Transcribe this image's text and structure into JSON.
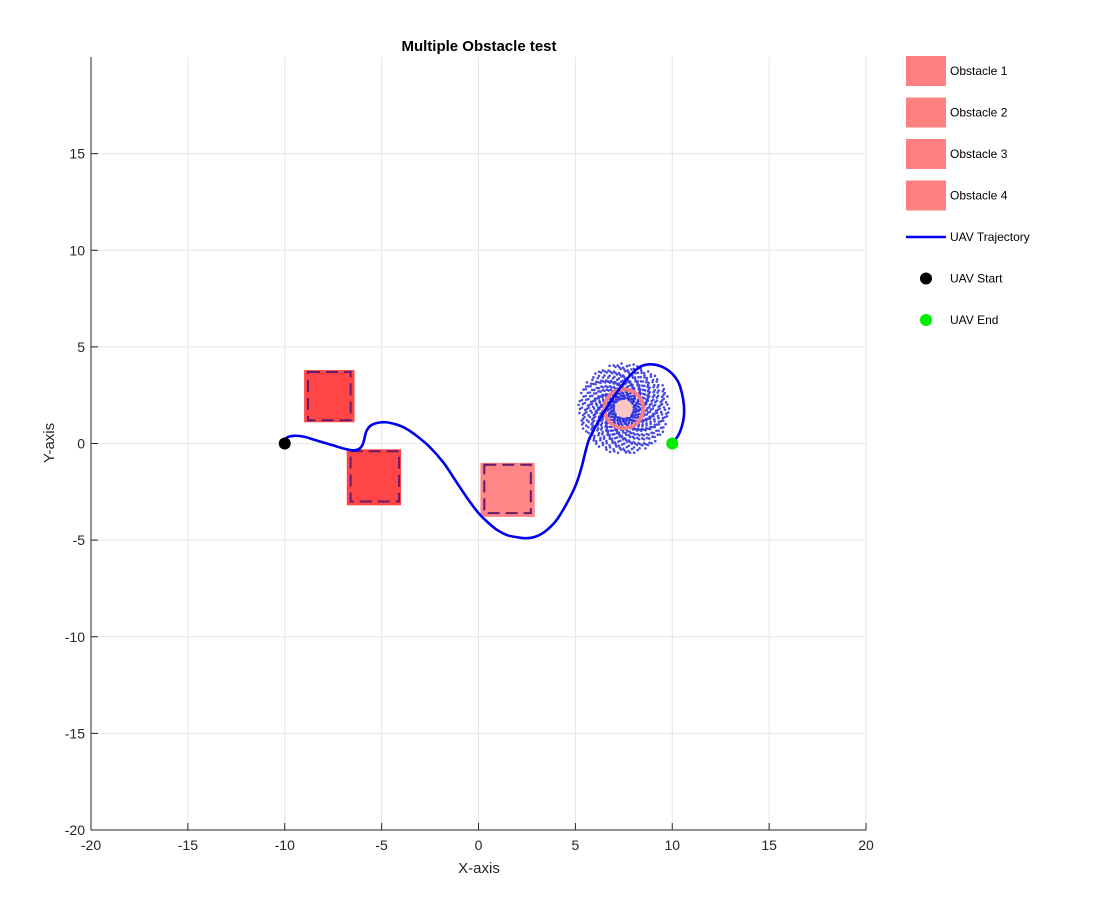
{
  "chart_data": {
    "type": "scatter",
    "title": "Multiple Obstacle test",
    "xlabel": "X-axis",
    "ylabel": "Y-axis",
    "xlim": [
      -20,
      20
    ],
    "ylim": [
      -20,
      20
    ],
    "xticks": [
      -20,
      -15,
      -10,
      -5,
      0,
      5,
      10,
      15,
      20
    ],
    "yticks": [
      -20,
      -15,
      -10,
      -5,
      0,
      5,
      10,
      15
    ],
    "tick_labels_x": [
      "-20",
      "-15",
      "-10",
      "-5",
      "0",
      "5",
      "10",
      "15",
      "20"
    ],
    "tick_labels_y": [
      "-20",
      "-15",
      "-10",
      "-5",
      "0",
      "5",
      "10",
      "15"
    ],
    "grid": true,
    "legend_position": "outside-top-right",
    "obstacles": [
      {
        "name": "Obstacle 1",
        "x": [
          -9,
          -6.4
        ],
        "y": [
          1.1,
          3.8
        ],
        "inner_x": [
          -8.8,
          -6.6
        ],
        "inner_y": [
          1.2,
          3.7
        ],
        "fill": "#ff3b3b"
      },
      {
        "name": "Obstacle 2",
        "x": [
          -6.8,
          -4
        ],
        "y": [
          -3.2,
          -0.3
        ],
        "inner_x": [
          -6.6,
          -4.1
        ],
        "inner_y": [
          -3.0,
          -0.4
        ],
        "fill": "#ff3b3b"
      },
      {
        "name": "Obstacle 3",
        "x": [
          0.1,
          2.9
        ],
        "y": [
          -3.8,
          -1.0
        ],
        "inner_x": [
          0.3,
          2.7
        ],
        "inner_y": [
          -3.6,
          -1.1
        ],
        "fill": "#ff8080"
      },
      {
        "name": "Obstacle 4",
        "center": [
          7.5,
          1.8
        ],
        "radius": 1.0,
        "fill": "#ff8080"
      }
    ],
    "trajectory": {
      "name": "UAV Trajectory",
      "color": "#0000ee",
      "points": [
        [
          -10,
          0
        ],
        [
          -9.9,
          0.3
        ],
        [
          -9.5,
          0.4
        ],
        [
          -9,
          0.35
        ],
        [
          -8.5,
          0.2
        ],
        [
          -8,
          0.05
        ],
        [
          -7.5,
          -0.1
        ],
        [
          -7,
          -0.25
        ],
        [
          -6.5,
          -0.35
        ],
        [
          -6.2,
          -0.3
        ],
        [
          -6,
          -0.1
        ],
        [
          -5.9,
          0.2
        ],
        [
          -5.8,
          0.6
        ],
        [
          -5.6,
          0.9
        ],
        [
          -5.3,
          1.05
        ],
        [
          -4.8,
          1.1
        ],
        [
          -4.3,
          1.0
        ],
        [
          -3.8,
          0.8
        ],
        [
          -3.2,
          0.4
        ],
        [
          -2.5,
          -0.2
        ],
        [
          -1.8,
          -1.0
        ],
        [
          -1.2,
          -1.9
        ],
        [
          -0.6,
          -2.8
        ],
        [
          0,
          -3.6
        ],
        [
          0.5,
          -4.1
        ],
        [
          1,
          -4.5
        ],
        [
          1.5,
          -4.75
        ],
        [
          2,
          -4.85
        ],
        [
          2.5,
          -4.9
        ],
        [
          3,
          -4.8
        ],
        [
          3.5,
          -4.5
        ],
        [
          4,
          -4.0
        ],
        [
          4.5,
          -3.2
        ],
        [
          5,
          -2.2
        ],
        [
          5.3,
          -1.3
        ],
        [
          5.5,
          -0.5
        ],
        [
          5.7,
          0.2
        ],
        [
          6,
          0.8
        ],
        [
          6.4,
          1.5
        ],
        [
          6.9,
          2.3
        ],
        [
          7.4,
          3.0
        ],
        [
          7.9,
          3.6
        ],
        [
          8.4,
          4.0
        ],
        [
          8.9,
          4.1
        ],
        [
          9.4,
          4.0
        ],
        [
          9.9,
          3.7
        ],
        [
          10.3,
          3.2
        ],
        [
          10.5,
          2.6
        ],
        [
          10.6,
          2.0
        ],
        [
          10.6,
          1.4
        ],
        [
          10.5,
          0.9
        ],
        [
          10.3,
          0.4
        ],
        [
          10,
          0
        ]
      ]
    },
    "swirl": {
      "center": [
        7.5,
        1.8
      ],
      "outer_radius": 2.3,
      "color": "#2b2bdd"
    },
    "start": {
      "name": "UAV Start",
      "x": -10,
      "y": 0,
      "color": "#000000"
    },
    "end": {
      "name": "UAV End",
      "x": 10,
      "y": 0,
      "color": "#00ee00"
    }
  },
  "legend": {
    "items": [
      {
        "label": "Obstacle 1",
        "kind": "patch",
        "color": "#ff8080"
      },
      {
        "label": "Obstacle 2",
        "kind": "patch",
        "color": "#ff8080"
      },
      {
        "label": "Obstacle 3",
        "kind": "patch",
        "color": "#ff8080"
      },
      {
        "label": "Obstacle 4",
        "kind": "patch",
        "color": "#ff8080"
      },
      {
        "label": "UAV Trajectory",
        "kind": "line",
        "color": "#0000ee"
      },
      {
        "label": "UAV Start",
        "kind": "marker",
        "color": "#000000"
      },
      {
        "label": "UAV End",
        "kind": "marker",
        "color": "#00ee00"
      }
    ]
  }
}
